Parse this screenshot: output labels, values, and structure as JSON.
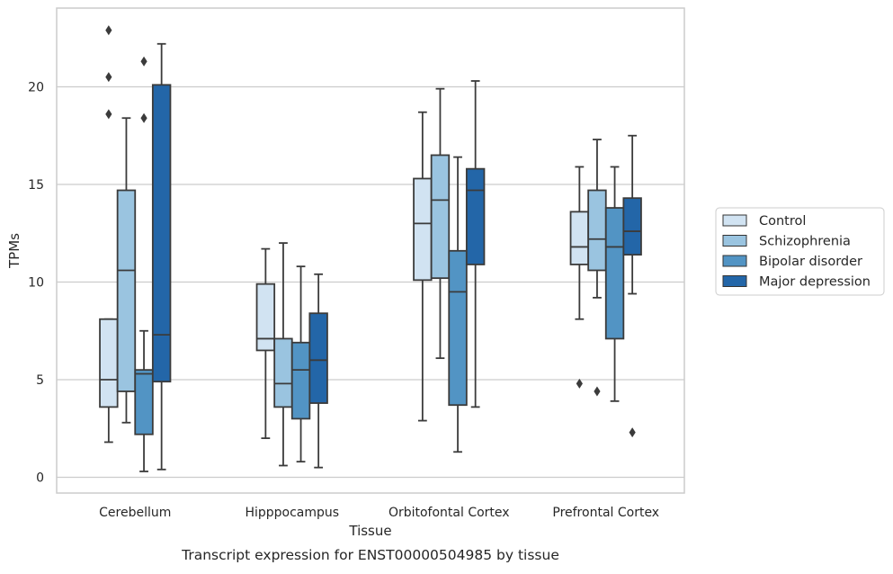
{
  "chart_data": {
    "type": "boxplot",
    "caption": "Transcript expression for ENST00000504985 by tissue",
    "xlabel": "Tissue",
    "ylabel": "TPMs",
    "ylim": [
      -0.7,
      24.1
    ],
    "yticks": [
      0,
      5,
      10,
      15,
      20
    ],
    "grid": "horizontal",
    "legend_position": "right",
    "categories": [
      "Cerebellum",
      "Hipppocampus",
      "Orbitofontal Cortex",
      "Prefrontal Cortex"
    ],
    "series": [
      {
        "name": "Control",
        "color": "#d1e3f2",
        "boxes": [
          {
            "whislo": 1.8,
            "q1": 3.6,
            "med": 5.0,
            "q3": 8.1,
            "whishi": 8.1,
            "fliers": [
              18.6,
              20.5,
              22.9
            ]
          },
          {
            "whislo": 2.0,
            "q1": 6.5,
            "med": 7.1,
            "q3": 9.9,
            "whishi": 11.7,
            "fliers": []
          },
          {
            "whislo": 2.9,
            "q1": 10.1,
            "med": 13.0,
            "q3": 15.3,
            "whishi": 18.7,
            "fliers": []
          },
          {
            "whislo": 8.1,
            "q1": 10.9,
            "med": 11.8,
            "q3": 13.6,
            "whishi": 15.9,
            "fliers": [
              4.8
            ]
          }
        ]
      },
      {
        "name": "Schizophrenia",
        "color": "#9ac4e0",
        "boxes": [
          {
            "whislo": 2.8,
            "q1": 4.4,
            "med": 10.6,
            "q3": 14.7,
            "whishi": 18.4,
            "fliers": []
          },
          {
            "whislo": 0.6,
            "q1": 3.6,
            "med": 4.8,
            "q3": 7.1,
            "whishi": 12.0,
            "fliers": []
          },
          {
            "whislo": 6.1,
            "q1": 10.2,
            "med": 14.2,
            "q3": 16.5,
            "whishi": 19.9,
            "fliers": []
          },
          {
            "whislo": 9.2,
            "q1": 10.6,
            "med": 12.2,
            "q3": 14.7,
            "whishi": 17.3,
            "fliers": [
              4.4
            ]
          }
        ]
      },
      {
        "name": "Bipolar disorder",
        "color": "#5294c4",
        "boxes": [
          {
            "whislo": 0.3,
            "q1": 2.2,
            "med": 5.3,
            "q3": 5.5,
            "whishi": 7.5,
            "fliers": [
              18.4,
              21.3
            ]
          },
          {
            "whislo": 0.8,
            "q1": 3.0,
            "med": 5.5,
            "q3": 6.9,
            "whishi": 10.8,
            "fliers": []
          },
          {
            "whislo": 1.3,
            "q1": 3.7,
            "med": 9.5,
            "q3": 11.6,
            "whishi": 16.4,
            "fliers": []
          },
          {
            "whislo": 3.9,
            "q1": 7.1,
            "med": 11.8,
            "q3": 13.8,
            "whishi": 15.9,
            "fliers": []
          }
        ]
      },
      {
        "name": "Major depression",
        "color": "#2366a8",
        "boxes": [
          {
            "whislo": 0.4,
            "q1": 4.9,
            "med": 7.3,
            "q3": 20.1,
            "whishi": 22.2,
            "fliers": []
          },
          {
            "whislo": 0.5,
            "q1": 3.8,
            "med": 6.0,
            "q3": 8.4,
            "whishi": 10.4,
            "fliers": []
          },
          {
            "whislo": 3.6,
            "q1": 10.9,
            "med": 14.7,
            "q3": 15.8,
            "whishi": 20.3,
            "fliers": []
          },
          {
            "whislo": 9.4,
            "q1": 11.4,
            "med": 12.6,
            "q3": 14.3,
            "whishi": 17.5,
            "fliers": [
              2.3
            ]
          }
        ]
      }
    ]
  }
}
